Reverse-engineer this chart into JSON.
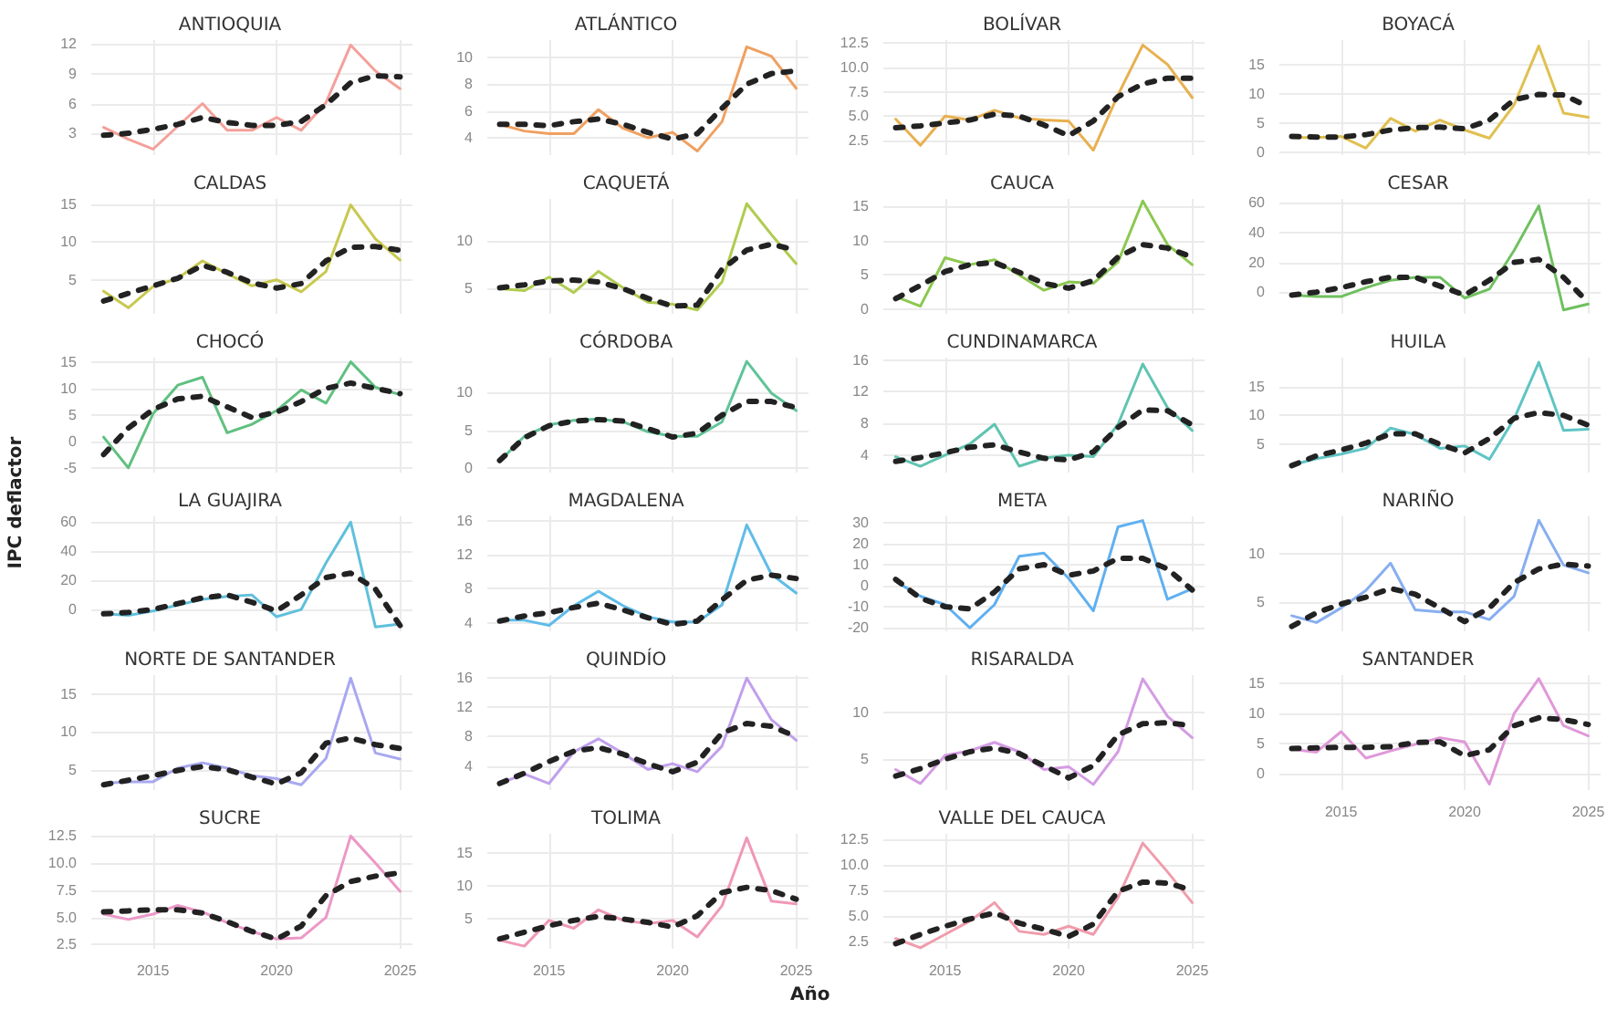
{
  "chart_data": [
    {
      "type": "line",
      "title": "ANTIOQUIA",
      "x": [
        2013,
        2014,
        2015,
        2016,
        2017,
        2018,
        2019,
        2020,
        2021,
        2022,
        2023,
        2024,
        2025
      ],
      "series": [
        {
          "color": "#f4a09a",
          "values": [
            3.6,
            2.4,
            1.4,
            3.7,
            6.0,
            3.3,
            3.3,
            4.6,
            3.3,
            6.1,
            11.9,
            9.3,
            7.5
          ]
        },
        {
          "color": "#222222",
          "line_style": "dashed",
          "values": [
            2.8,
            3.0,
            3.4,
            3.9,
            4.6,
            4.1,
            3.8,
            3.8,
            4.2,
            5.9,
            8.1,
            8.8,
            8.7
          ]
        }
      ],
      "xlim": [
        2012.5,
        2025.5
      ],
      "xticks": [
        2015,
        2020,
        2025
      ],
      "ylim": [
        0.8,
        12.4
      ],
      "yticks": [
        3,
        6,
        9,
        12
      ],
      "grid": true,
      "tick_labels": "y",
      "marker": "none"
    },
    {
      "type": "line",
      "title": "ATLÁNTICO",
      "x": [
        2013,
        2014,
        2015,
        2016,
        2017,
        2018,
        2019,
        2020,
        2021,
        2022,
        2023,
        2024,
        2025
      ],
      "series": [
        {
          "color": "#f0a060",
          "values": [
            5.0,
            4.5,
            4.3,
            4.3,
            6.1,
            4.7,
            4.0,
            4.4,
            3.0,
            5.2,
            10.8,
            10.1,
            7.7
          ]
        },
        {
          "color": "#222222",
          "line_style": "dashed",
          "values": [
            5.0,
            5.0,
            4.9,
            5.2,
            5.4,
            5.0,
            4.4,
            3.9,
            4.3,
            6.2,
            8.0,
            8.8,
            9.0
          ]
        }
      ],
      "xlim": [
        2012.5,
        2025.5
      ],
      "xticks": [
        2015,
        2020,
        2025
      ],
      "ylim": [
        2.7,
        11.3
      ],
      "yticks": [
        4,
        6,
        8,
        10
      ],
      "grid": true,
      "tick_labels": "y",
      "marker": "none"
    },
    {
      "type": "line",
      "title": "BOLÍVAR",
      "x": [
        2013,
        2014,
        2015,
        2016,
        2017,
        2018,
        2019,
        2020,
        2021,
        2022,
        2023,
        2024,
        2025
      ],
      "series": [
        {
          "color": "#e8b050",
          "values": [
            4.7,
            2.0,
            5.0,
            4.6,
            5.6,
            4.8,
            4.6,
            4.5,
            1.5,
            7.2,
            12.3,
            10.3,
            6.9
          ]
        },
        {
          "color": "#222222",
          "line_style": "dashed",
          "values": [
            3.8,
            4.0,
            4.3,
            4.6,
            5.2,
            5.0,
            4.1,
            3.0,
            4.5,
            7.0,
            8.3,
            8.9,
            8.9
          ]
        }
      ],
      "xlim": [
        2012.5,
        2025.5
      ],
      "xticks": [
        2015,
        2020,
        2025
      ],
      "ylim": [
        1.0,
        12.8
      ],
      "yticks": [
        {
          "value": 2.5,
          "label": "2.5"
        },
        {
          "value": 5,
          "label": "5.0"
        },
        {
          "value": 7.5,
          "label": "7.5"
        },
        {
          "value": 10,
          "label": "10.0"
        },
        {
          "value": 12.5,
          "label": "12.5"
        }
      ],
      "grid": true,
      "tick_labels": "y",
      "marker": "none"
    },
    {
      "type": "line",
      "title": "BOYACÁ",
      "x": [
        2013,
        2014,
        2015,
        2016,
        2017,
        2018,
        2019,
        2020,
        2021,
        2022,
        2023,
        2024,
        2025
      ],
      "series": [
        {
          "color": "#e0c050",
          "values": [
            2.5,
            2.5,
            2.7,
            0.7,
            5.8,
            3.6,
            5.5,
            3.8,
            2.4,
            8.1,
            18.2,
            6.7,
            6.0
          ]
        },
        {
          "color": "#222222",
          "line_style": "dashed",
          "values": [
            2.7,
            2.6,
            2.6,
            3.0,
            3.8,
            4.2,
            4.3,
            4.0,
            5.5,
            9.0,
            9.9,
            9.8,
            7.8
          ]
        }
      ],
      "xlim": [
        2012.5,
        2025.5
      ],
      "xticks": [
        2015,
        2020,
        2025
      ],
      "ylim": [
        -0.5,
        19.2
      ],
      "yticks": [
        0,
        5,
        10,
        15
      ],
      "grid": true,
      "tick_labels": "y",
      "marker": "none"
    },
    {
      "type": "line",
      "title": "CALDAS",
      "x": [
        2013,
        2014,
        2015,
        2016,
        2017,
        2018,
        2019,
        2020,
        2021,
        2022,
        2023,
        2024,
        2025
      ],
      "series": [
        {
          "color": "#c8c850",
          "values": [
            3.5,
            1.3,
            4.1,
            5.2,
            7.5,
            5.8,
            4.2,
            5.0,
            3.4,
            6.1,
            14.9,
            10.4,
            7.6
          ]
        },
        {
          "color": "#222222",
          "line_style": "dashed",
          "values": [
            2.2,
            3.2,
            4.2,
            5.2,
            6.9,
            6.0,
            4.6,
            3.9,
            4.5,
            7.5,
            9.3,
            9.4,
            8.9
          ]
        }
      ],
      "xlim": [
        2012.5,
        2025.5
      ],
      "xticks": [
        2015,
        2020,
        2025
      ],
      "ylim": [
        0.5,
        15.7
      ],
      "yticks": [
        5,
        10,
        15
      ],
      "grid": true,
      "tick_labels": "y",
      "marker": "none"
    },
    {
      "type": "line",
      "title": "CAQUETÁ",
      "x": [
        2013,
        2014,
        2015,
        2016,
        2017,
        2018,
        2019,
        2020,
        2021,
        2022,
        2023,
        2024,
        2025
      ],
      "series": [
        {
          "color": "#b0cc50",
          "values": [
            5.0,
            4.8,
            6.2,
            4.6,
            6.8,
            5.1,
            3.6,
            3.4,
            2.8,
            5.7,
            13.8,
            10.6,
            7.6
          ]
        },
        {
          "color": "#222222",
          "line_style": "dashed",
          "values": [
            5.1,
            5.4,
            5.8,
            5.9,
            5.7,
            5.0,
            4.0,
            3.2,
            3.3,
            7.0,
            9.0,
            9.6,
            9.0
          ]
        }
      ],
      "xlim": [
        2012.5,
        2025.5
      ],
      "xticks": [
        2015,
        2020,
        2025
      ],
      "ylim": [
        2.4,
        14.3
      ],
      "yticks": [
        5,
        10
      ],
      "grid": true,
      "tick_labels": "y",
      "marker": "none"
    },
    {
      "type": "line",
      "title": "CAUCA",
      "x": [
        2013,
        2014,
        2015,
        2016,
        2017,
        2018,
        2019,
        2020,
        2021,
        2022,
        2023,
        2024,
        2025
      ],
      "series": [
        {
          "color": "#8cc850",
          "values": [
            1.9,
            0.5,
            7.5,
            6.5,
            7.2,
            5.0,
            2.8,
            4.0,
            3.8,
            6.9,
            15.7,
            9.4,
            6.5
          ]
        },
        {
          "color": "#222222",
          "line_style": "dashed",
          "values": [
            1.6,
            3.5,
            5.5,
            6.5,
            6.8,
            5.4,
            3.8,
            3.1,
            4.2,
            7.6,
            9.4,
            8.9,
            7.6
          ]
        }
      ],
      "xlim": [
        2012.5,
        2025.5
      ],
      "xticks": [
        2015,
        2020,
        2025
      ],
      "ylim": [
        -0.6,
        16.0
      ],
      "yticks": [
        0,
        5,
        10,
        15
      ],
      "grid": true,
      "tick_labels": "y",
      "marker": "none"
    },
    {
      "type": "line",
      "title": "CESAR",
      "x": [
        2013,
        2014,
        2015,
        2016,
        2017,
        2018,
        2019,
        2020,
        2021,
        2022,
        2023,
        2024,
        2025
      ],
      "series": [
        {
          "color": "#70c060",
          "values": [
            -2,
            -3,
            -3,
            3,
            8,
            10,
            10,
            -4,
            2,
            28,
            58,
            -12,
            -8
          ]
        },
        {
          "color": "#222222",
          "line_style": "dashed",
          "values": [
            -2,
            0,
            3,
            7,
            10,
            10,
            4,
            -2,
            8,
            20,
            22,
            10,
            -7
          ]
        }
      ],
      "xlim": [
        2012.5,
        2025.5
      ],
      "xticks": [
        2015,
        2020,
        2025
      ],
      "ylim": [
        -14.6,
        62.7
      ],
      "yticks": [
        0,
        20,
        40,
        60
      ],
      "grid": true,
      "tick_labels": "y",
      "marker": "none"
    },
    {
      "type": "line",
      "title": "CHOCÓ",
      "x": [
        2013,
        2014,
        2015,
        2016,
        2017,
        2018,
        2019,
        2020,
        2021,
        2022,
        2023,
        2024,
        2025
      ],
      "series": [
        {
          "color": "#60c080",
          "values": [
            0.8,
            -5,
            5.2,
            10.6,
            12.1,
            1.6,
            3.2,
            5.8,
            9.7,
            7.2,
            15,
            10.2,
            8.8
          ]
        },
        {
          "color": "#222222",
          "line_style": "dashed",
          "values": [
            -2.5,
            2.5,
            6,
            8,
            8.5,
            6.5,
            4.5,
            5.5,
            7.5,
            10,
            11,
            10,
            9
          ]
        }
      ],
      "xlim": [
        2012.5,
        2025.5
      ],
      "xticks": [
        2015,
        2020,
        2025
      ],
      "ylim": [
        -5.9,
        15.8
      ],
      "yticks": [
        -5,
        0,
        5,
        10,
        15
      ],
      "grid": true,
      "tick_labels": "y",
      "marker": "none"
    },
    {
      "type": "line",
      "title": "CÓRDOBA",
      "x": [
        2013,
        2014,
        2015,
        2016,
        2017,
        2018,
        2019,
        2020,
        2021,
        2022,
        2023,
        2024,
        2025
      ],
      "series": [
        {
          "color": "#60c498",
          "values": [
            0.9,
            4.2,
            5.7,
            6.3,
            6.5,
            6.1,
            4.8,
            4.2,
            4.2,
            6.1,
            14.1,
            9.9,
            7.6
          ]
        },
        {
          "color": "#222222",
          "line_style": "dashed",
          "values": [
            1.0,
            4.0,
            5.6,
            6.2,
            6.4,
            6.2,
            5.2,
            4.1,
            4.6,
            7.0,
            8.8,
            8.8,
            8.0
          ]
        }
      ],
      "xlim": [
        2012.5,
        2025.5
      ],
      "xticks": [
        2015,
        2020,
        2025
      ],
      "ylim": [
        -0.6,
        14.6
      ],
      "yticks": [
        0,
        5,
        10
      ],
      "grid": true,
      "tick_labels": "y",
      "marker": "none"
    },
    {
      "type": "line",
      "title": "CUNDINAMARCA",
      "x": [
        2013,
        2014,
        2015,
        2016,
        2017,
        2018,
        2019,
        2020,
        2021,
        2022,
        2023,
        2024,
        2025
      ],
      "series": [
        {
          "color": "#60c4b0",
          "values": [
            3.8,
            2.6,
            4.0,
            5.4,
            7.9,
            2.6,
            3.6,
            4.0,
            3.8,
            7.9,
            15.5,
            10.0,
            7.1
          ]
        },
        {
          "color": "#222222",
          "line_style": "dashed",
          "values": [
            3.2,
            3.7,
            4.3,
            5.0,
            5.3,
            4.4,
            3.6,
            3.4,
            4.4,
            7.5,
            9.7,
            9.6,
            7.8
          ]
        }
      ],
      "xlim": [
        2012.5,
        2025.5
      ],
      "xticks": [
        2015,
        2020,
        2025
      ],
      "ylim": [
        1.8,
        16.3
      ],
      "yticks": [
        4,
        8,
        12,
        16
      ],
      "grid": true,
      "tick_labels": "y",
      "marker": "none"
    },
    {
      "type": "line",
      "title": "HUILA",
      "x": [
        2013,
        2014,
        2015,
        2016,
        2017,
        2018,
        2019,
        2020,
        2021,
        2022,
        2023,
        2024,
        2025
      ],
      "series": [
        {
          "color": "#60c4c4",
          "values": [
            1.4,
            2.5,
            3.3,
            4.3,
            7.8,
            6.7,
            4.3,
            4.7,
            2.4,
            9.4,
            19.2,
            7.4,
            7.6
          ]
        },
        {
          "color": "#222222",
          "line_style": "dashed",
          "values": [
            1.3,
            3.0,
            4.0,
            5.2,
            6.8,
            6.8,
            5.0,
            3.5,
            6.0,
            9.5,
            10.5,
            10.0,
            8.3
          ]
        }
      ],
      "xlim": [
        2012.5,
        2025.5
      ],
      "xticks": [
        2015,
        2020,
        2025
      ],
      "ylim": [
        0.1,
        20.0
      ],
      "yticks": [
        5,
        10,
        15
      ],
      "grid": true,
      "tick_labels": "y",
      "marker": "none"
    },
    {
      "type": "line",
      "title": "LA GUAJIRA",
      "ylabel": "IPC deflactor",
      "x": [
        2013,
        2014,
        2015,
        2016,
        2017,
        2018,
        2019,
        2020,
        2021,
        2022,
        2023,
        2024,
        2025
      ],
      "series": [
        {
          "color": "#60c0dc",
          "values": [
            -3,
            -4,
            -1,
            3,
            7,
            9,
            10,
            -5,
            0,
            32,
            60,
            -12,
            -10
          ]
        },
        {
          "color": "#222222",
          "line_style": "dashed",
          "values": [
            -3,
            -2,
            0,
            4,
            8,
            10,
            5,
            -1,
            10,
            22,
            25,
            14,
            -11
          ]
        }
      ],
      "xlim": [
        2012.5,
        2025.5
      ],
      "xticks": [
        2015,
        2020,
        2025
      ],
      "ylim": [
        -15,
        64
      ],
      "yticks": [
        0,
        20,
        40,
        60
      ],
      "grid": true,
      "tick_labels": "y",
      "marker": "none"
    },
    {
      "type": "line",
      "title": "MAGDALENA",
      "x": [
        2013,
        2014,
        2015,
        2016,
        2017,
        2018,
        2019,
        2020,
        2021,
        2022,
        2023,
        2024,
        2025
      ],
      "series": [
        {
          "color": "#60bce8",
          "values": [
            4.3,
            4.3,
            3.7,
            6.0,
            7.7,
            6.0,
            4.7,
            4.1,
            4.1,
            6.1,
            15.5,
            9.7,
            7.5
          ]
        },
        {
          "color": "#222222",
          "line_style": "dashed",
          "values": [
            4.2,
            4.8,
            5.2,
            5.8,
            6.3,
            5.5,
            4.6,
            3.8,
            4.2,
            6.7,
            9.0,
            9.6,
            9.2
          ]
        }
      ],
      "xlim": [
        2012.5,
        2025.5
      ],
      "xticks": [
        2015,
        2020,
        2025
      ],
      "ylim": [
        3.0,
        16.5
      ],
      "yticks": [
        4,
        8,
        12,
        16
      ],
      "grid": true,
      "tick_labels": "y",
      "marker": "none"
    },
    {
      "type": "line",
      "title": "META",
      "x": [
        2013,
        2014,
        2015,
        2016,
        2017,
        2018,
        2019,
        2020,
        2021,
        2022,
        2023,
        2024,
        2025
      ],
      "series": [
        {
          "color": "#60b0f0",
          "values": [
            2,
            -5,
            -9,
            -20,
            -9,
            14,
            15.5,
            3.5,
            -12,
            28,
            31,
            -6.5,
            -1.5
          ]
        },
        {
          "color": "#222222",
          "line_style": "dashed",
          "values": [
            3,
            -6,
            -10,
            -11,
            -3,
            8,
            10,
            5,
            7,
            13,
            13,
            8,
            -2
          ]
        }
      ],
      "xlim": [
        2012.5,
        2025.5
      ],
      "xticks": [
        2015,
        2020,
        2025
      ],
      "ylim": [
        -21.7,
        33
      ],
      "yticks": [
        -20,
        -10,
        0,
        10,
        20,
        30
      ],
      "grid": true,
      "tick_labels": "y",
      "marker": "none"
    },
    {
      "type": "line",
      "title": "NARIÑO",
      "x": [
        2013,
        2014,
        2015,
        2016,
        2017,
        2018,
        2019,
        2020,
        2021,
        2022,
        2023,
        2024,
        2025
      ],
      "series": [
        {
          "color": "#88aef0",
          "values": [
            3.6,
            2.9,
            4.4,
            6.2,
            9.0,
            4.2,
            4.0,
            4.0,
            3.2,
            5.6,
            13.4,
            8.8,
            8.0
          ]
        },
        {
          "color": "#222222",
          "line_style": "dashed",
          "values": [
            2.5,
            3.9,
            4.8,
            5.5,
            6.4,
            5.8,
            4.4,
            3.0,
            4.4,
            7.0,
            8.4,
            8.9,
            8.7
          ]
        }
      ],
      "xlim": [
        2012.5,
        2025.5
      ],
      "xticks": [
        2015,
        2020,
        2025
      ],
      "ylim": [
        2.0,
        13.8
      ],
      "yticks": [
        5,
        10
      ],
      "grid": true,
      "tick_labels": "y",
      "marker": "none"
    },
    {
      "type": "line",
      "title": "NORTE DE SANTANDER",
      "x": [
        2013,
        2014,
        2015,
        2016,
        2017,
        2018,
        2019,
        2020,
        2021,
        2022,
        2023,
        2024,
        2025
      ],
      "series": [
        {
          "color": "#a8a8f0",
          "values": [
            3.2,
            3.4,
            3.4,
            5.2,
            5.9,
            5.2,
            4.2,
            3.8,
            3.0,
            6.5,
            17.1,
            7.2,
            6.4
          ]
        },
        {
          "color": "#222222",
          "line_style": "dashed",
          "values": [
            3.0,
            3.6,
            4.2,
            4.9,
            5.4,
            5.0,
            4.0,
            3.1,
            4.6,
            8.5,
            9.2,
            8.3,
            7.8
          ]
        }
      ],
      "xlim": [
        2012.5,
        2025.5
      ],
      "xticks": [
        2015,
        2020,
        2025
      ],
      "ylim": [
        2.3,
        17.5
      ],
      "yticks": [
        5,
        10,
        15
      ],
      "grid": true,
      "tick_labels": "y",
      "marker": "none"
    },
    {
      "type": "line",
      "title": "QUINDÍO",
      "x": [
        2013,
        2014,
        2015,
        2016,
        2017,
        2018,
        2019,
        2020,
        2021,
        2022,
        2023,
        2024,
        2025
      ],
      "series": [
        {
          "color": "#c0a0ec",
          "values": [
            1.6,
            2.9,
            1.6,
            5.9,
            7.7,
            5.7,
            3.5,
            4.3,
            3.2,
            6.7,
            16.0,
            10.3,
            7.5
          ]
        },
        {
          "color": "#222222",
          "line_style": "dashed",
          "values": [
            1.6,
            3.0,
            4.6,
            6.0,
            6.5,
            5.6,
            4.3,
            3.2,
            4.5,
            8.5,
            9.8,
            9.4,
            8.0
          ]
        }
      ],
      "xlim": [
        2012.5,
        2025.5
      ],
      "xticks": [
        2015,
        2020,
        2025
      ],
      "ylim": [
        0.7,
        16.4
      ],
      "yticks": [
        4,
        8,
        12,
        16
      ],
      "grid": true,
      "tick_labels": "y",
      "marker": "none"
    },
    {
      "type": "line",
      "title": "RISARALDA",
      "x": [
        2013,
        2014,
        2015,
        2016,
        2017,
        2018,
        2019,
        2020,
        2021,
        2022,
        2023,
        2024,
        2025
      ],
      "series": [
        {
          "color": "#d49ce4",
          "values": [
            3.9,
            2.4,
            5.4,
            5.9,
            6.8,
            5.8,
            3.9,
            4.2,
            2.3,
            5.8,
            13.6,
            9.6,
            7.3
          ]
        },
        {
          "color": "#222222",
          "line_style": "dashed",
          "values": [
            3.2,
            4.0,
            5.0,
            5.8,
            6.2,
            5.6,
            4.3,
            3.0,
            4.3,
            7.6,
            8.8,
            8.9,
            8.6
          ]
        }
      ],
      "xlim": [
        2012.5,
        2025.5
      ],
      "xticks": [
        2015,
        2020,
        2025
      ],
      "ylim": [
        1.7,
        14.0
      ],
      "yticks": [
        5,
        10
      ],
      "grid": true,
      "tick_labels": "y",
      "marker": "none"
    },
    {
      "type": "line",
      "title": "SANTANDER",
      "x": [
        2013,
        2014,
        2015,
        2016,
        2017,
        2018,
        2019,
        2020,
        2021,
        2022,
        2023,
        2024,
        2025
      ],
      "series": [
        {
          "color": "#e098d8",
          "values": [
            4.1,
            3.6,
            7.0,
            2.6,
            3.8,
            4.9,
            6.0,
            5.3,
            -1.7,
            10.0,
            15.8,
            8.0,
            6.3
          ]
        },
        {
          "color": "#222222",
          "line_style": "dashed",
          "values": [
            4.2,
            4.3,
            4.4,
            4.4,
            4.5,
            5.2,
            5.3,
            3.0,
            4.0,
            8.0,
            9.3,
            9.0,
            8.2
          ]
        }
      ],
      "xlim": [
        2012.5,
        2025.5
      ],
      "xticks": [
        2015,
        2020,
        2025
      ],
      "ylim": [
        -2.7,
        16.4
      ],
      "yticks": [
        0,
        5,
        10,
        15
      ],
      "grid": true,
      "marker": "none"
    },
    {
      "type": "line",
      "title": "SUCRE",
      "x": [
        2013,
        2014,
        2015,
        2016,
        2017,
        2018,
        2019,
        2020,
        2021,
        2022,
        2023,
        2024,
        2025
      ],
      "series": [
        {
          "color": "#ec98c8",
          "values": [
            5.3,
            4.8,
            5.3,
            6.1,
            5.5,
            4.5,
            3.7,
            3.0,
            3.1,
            5.0,
            12.5,
            10.0,
            7.4
          ]
        },
        {
          "color": "#222222",
          "line_style": "dashed",
          "values": [
            5.5,
            5.6,
            5.7,
            5.7,
            5.4,
            4.6,
            3.7,
            3.0,
            4.2,
            7.0,
            8.3,
            8.8,
            9.1
          ]
        }
      ],
      "xlim": [
        2012.5,
        2025.5
      ],
      "xticks": [
        2015,
        2020,
        2025
      ],
      "ylim": [
        2.1,
        12.7
      ],
      "yticks": [
        {
          "value": 2.5,
          "label": "2.5"
        },
        {
          "value": 5,
          "label": "5.0"
        },
        {
          "value": 7.5,
          "label": "7.5"
        },
        {
          "value": 10,
          "label": "10.0"
        },
        {
          "value": 12.5,
          "label": "12.5"
        }
      ],
      "grid": true,
      "marker": "none"
    },
    {
      "type": "line",
      "title": "TOLIMA",
      "x": [
        2013,
        2014,
        2015,
        2016,
        2017,
        2018,
        2019,
        2020,
        2021,
        2022,
        2023,
        2024,
        2025
      ],
      "series": [
        {
          "color": "#f098b8",
          "values": [
            1.8,
            0.9,
            4.8,
            3.6,
            6.4,
            4.8,
            4.3,
            4.8,
            2.3,
            7.0,
            17.3,
            7.7,
            7.3
          ]
        },
        {
          "color": "#222222",
          "line_style": "dashed",
          "values": [
            2.0,
            3.0,
            4.0,
            4.8,
            5.4,
            5.0,
            4.5,
            3.8,
            5.5,
            9.0,
            9.8,
            9.3,
            8.0
          ]
        }
      ],
      "xlim": [
        2012.5,
        2025.5
      ],
      "xticks": [
        2015,
        2020,
        2025
      ],
      "ylim": [
        0.5,
        17.9
      ],
      "yticks": [
        5,
        10,
        15
      ],
      "grid": true,
      "marker": "none"
    },
    {
      "type": "line",
      "title": "VALLE DEL CAUCA",
      "xlabel": "Año",
      "x": [
        2013,
        2014,
        2015,
        2016,
        2017,
        2018,
        2019,
        2020,
        2021,
        2022,
        2023,
        2024,
        2025
      ],
      "series": [
        {
          "color": "#f09cac",
          "values": [
            2.8,
            1.9,
            3.2,
            4.5,
            6.3,
            3.5,
            3.2,
            4.0,
            3.2,
            6.8,
            12.1,
            9.3,
            6.3
          ]
        },
        {
          "color": "#222222",
          "line_style": "dashed",
          "values": [
            2.3,
            3.2,
            4.0,
            4.7,
            5.3,
            4.3,
            3.7,
            3.0,
            4.2,
            7.4,
            8.3,
            8.2,
            7.5
          ]
        }
      ],
      "xlim": [
        2012.5,
        2025.5
      ],
      "xticks": [
        2015,
        2020,
        2025
      ],
      "ylim": [
        1.8,
        13.0
      ],
      "yticks": [
        {
          "value": 2.5,
          "label": "2.5"
        },
        {
          "value": 5,
          "label": "5.0"
        },
        {
          "value": 7.5,
          "label": "7.5"
        },
        {
          "value": 10,
          "label": "10.0"
        },
        {
          "value": 12.5,
          "label": "12.5"
        }
      ],
      "grid": true,
      "marker": "none"
    }
  ]
}
